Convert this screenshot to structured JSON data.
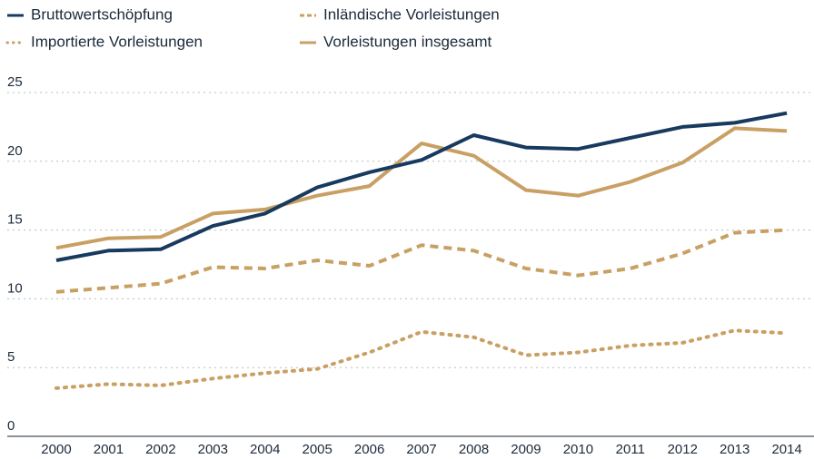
{
  "chart_data": {
    "type": "line",
    "x": [
      2000,
      2001,
      2002,
      2003,
      2004,
      2005,
      2006,
      2007,
      2008,
      2009,
      2010,
      2011,
      2012,
      2013,
      2014
    ],
    "series": [
      {
        "name": "Bruttowertschöpfung",
        "color": "#173a5e",
        "dash": "solid",
        "values": [
          12.8,
          13.5,
          13.6,
          15.3,
          16.2,
          18.1,
          19.2,
          20.1,
          21.9,
          21.0,
          20.9,
          21.7,
          22.5,
          22.8,
          23.5
        ]
      },
      {
        "name": "Inländische Vorleistungen",
        "color": "#c9a063",
        "dash": "dashed",
        "values": [
          10.5,
          10.8,
          11.1,
          12.3,
          12.2,
          12.8,
          12.4,
          13.9,
          13.5,
          12.2,
          11.7,
          12.2,
          13.3,
          14.8,
          15.0
        ]
      },
      {
        "name": "Importierte Vorleistungen",
        "color": "#c9a063",
        "dash": "dotted",
        "values": [
          3.5,
          3.8,
          3.7,
          4.2,
          4.6,
          4.9,
          6.1,
          7.6,
          7.2,
          5.9,
          6.1,
          6.6,
          6.8,
          7.7,
          7.5
        ]
      },
      {
        "name": "Vorleistungen insgesamt",
        "color": "#c9a063",
        "dash": "solid",
        "values": [
          13.7,
          14.4,
          14.5,
          16.2,
          16.5,
          17.5,
          18.2,
          21.3,
          20.4,
          17.9,
          17.5,
          18.5,
          19.9,
          22.4,
          22.2
        ]
      }
    ],
    "xlim": [
      1999.06,
      2014.52
    ],
    "xticks": [
      2000,
      2001,
      2002,
      2003,
      2004,
      2005,
      2006,
      2007,
      2008,
      2009,
      2010,
      2011,
      2012,
      2013,
      2014
    ],
    "ylim": [
      0,
      25
    ],
    "yticks": [
      0,
      5,
      10,
      15,
      20,
      25
    ],
    "grid": true
  }
}
